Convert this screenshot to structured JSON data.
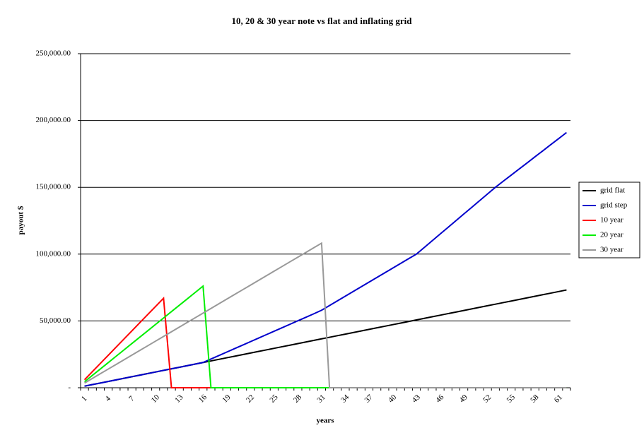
{
  "chart_data": {
    "type": "line",
    "title": "10, 20 & 30 year note vs flat and inflating grid",
    "x_label": "years",
    "y_label": "payout $",
    "categories": [
      "1",
      null,
      null,
      "4",
      null,
      null,
      "7",
      null,
      null,
      "10",
      null,
      null,
      "13",
      null,
      null,
      "16",
      null,
      null,
      "19",
      null,
      null,
      "22",
      null,
      null,
      "25",
      null,
      null,
      "28",
      null,
      null,
      "31",
      null,
      null,
      "34",
      null,
      null,
      "37",
      null,
      null,
      "40",
      null,
      null,
      "43",
      null,
      null,
      "46",
      null,
      null,
      "49",
      null,
      null,
      "52",
      null,
      null,
      "55",
      null,
      null,
      "58",
      null,
      null,
      "61",
      null
    ],
    "ylim": [
      0,
      250000
    ],
    "yticks": [
      {
        "value": 0,
        "label": "-"
      },
      {
        "value": 50000,
        "label": "50,000.00"
      },
      {
        "value": 100000,
        "label": "100,000.00"
      },
      {
        "value": 150000,
        "label": "150,000.00"
      },
      {
        "value": 200000,
        "label": "200,000.00"
      },
      {
        "value": 250000,
        "label": "250,000.00"
      }
    ],
    "grid": true,
    "legend": "right",
    "series": [
      {
        "name": "grid flat",
        "color": "#000000",
        "values": [
          1180,
          2360,
          3540,
          4720,
          5900,
          7080,
          8260,
          9440,
          10620,
          11800,
          12980,
          14160,
          15340,
          16520,
          17700,
          18880,
          20060,
          21240,
          22420,
          23600,
          24780,
          25960,
          27140,
          28320,
          29500,
          30680,
          31860,
          33040,
          34220,
          35400,
          36580,
          37760,
          38940,
          40120,
          41300,
          42480,
          43660,
          44840,
          46020,
          47200,
          48380,
          49560,
          50740,
          51920,
          53100,
          54280,
          55460,
          56640,
          57820,
          59000,
          60180,
          61360,
          62540,
          63720,
          64900,
          66080,
          67260,
          68440,
          69620,
          70800,
          71980,
          73160
        ]
      },
      {
        "name": "grid step",
        "color": "#0000cc",
        "values": [
          1200,
          2400,
          3500,
          4700,
          5900,
          7100,
          8300,
          9400,
          10600,
          11800,
          13000,
          14200,
          15300,
          16500,
          17700,
          18900,
          21500,
          24100,
          26700,
          29300,
          31900,
          34500,
          37100,
          39700,
          42300,
          44900,
          47500,
          50100,
          52700,
          55300,
          58000,
          61500,
          65000,
          68500,
          72000,
          75500,
          79000,
          82500,
          86000,
          89500,
          93000,
          96500,
          100000,
          105000,
          110000,
          115000,
          120000,
          125000,
          130000,
          135000,
          140000,
          145000,
          150000,
          154600,
          159100,
          163700,
          168200,
          172800,
          177300,
          181900,
          186400,
          191000
        ]
      },
      {
        "name": "10 year",
        "color": "#ff0000",
        "values": [
          6000,
          12100,
          18200,
          24300,
          30400,
          36500,
          42600,
          48700,
          54800,
          60900,
          67000,
          0,
          0,
          0,
          0,
          0,
          0,
          0,
          0,
          0,
          0,
          0,
          0,
          0,
          0,
          0,
          0,
          0,
          0,
          0,
          0,
          0,
          0,
          0,
          0,
          0,
          0,
          0,
          0,
          0,
          0,
          0,
          0,
          0,
          0,
          0,
          0,
          0,
          0,
          0,
          0,
          0,
          0,
          0,
          0,
          0,
          0,
          0,
          0,
          0,
          0,
          0
        ]
      },
      {
        "name": "20 year",
        "color": "#00ee00",
        "values": [
          4500,
          9270,
          14040,
          18810,
          23580,
          28350,
          33120,
          37890,
          42660,
          47430,
          52200,
          56970,
          61740,
          66510,
          71280,
          76050,
          0,
          0,
          0,
          0,
          0,
          0,
          0,
          0,
          0,
          0,
          0,
          0,
          0,
          0,
          0,
          0,
          0,
          0,
          0,
          0,
          0,
          0,
          0,
          0,
          0,
          0,
          0,
          0,
          0,
          0,
          0,
          0,
          0,
          0,
          0,
          0,
          0,
          0,
          0,
          0,
          0,
          0,
          0,
          0,
          0,
          0
        ]
      },
      {
        "name": "30 year",
        "color": "#999999",
        "values": [
          3500,
          6990,
          10480,
          13970,
          17460,
          20950,
          24440,
          27930,
          31420,
          34910,
          38400,
          41890,
          45380,
          48870,
          52360,
          55850,
          59340,
          62830,
          66320,
          69810,
          73300,
          76790,
          80280,
          83770,
          87260,
          90750,
          94240,
          97730,
          101220,
          104710,
          108200,
          0,
          0,
          0,
          0,
          0,
          0,
          0,
          0,
          0,
          0,
          0,
          0,
          0,
          0,
          0,
          0,
          0,
          0,
          0,
          0,
          0,
          0,
          0,
          0,
          0,
          0,
          0,
          0,
          0,
          0,
          0
        ]
      }
    ]
  }
}
